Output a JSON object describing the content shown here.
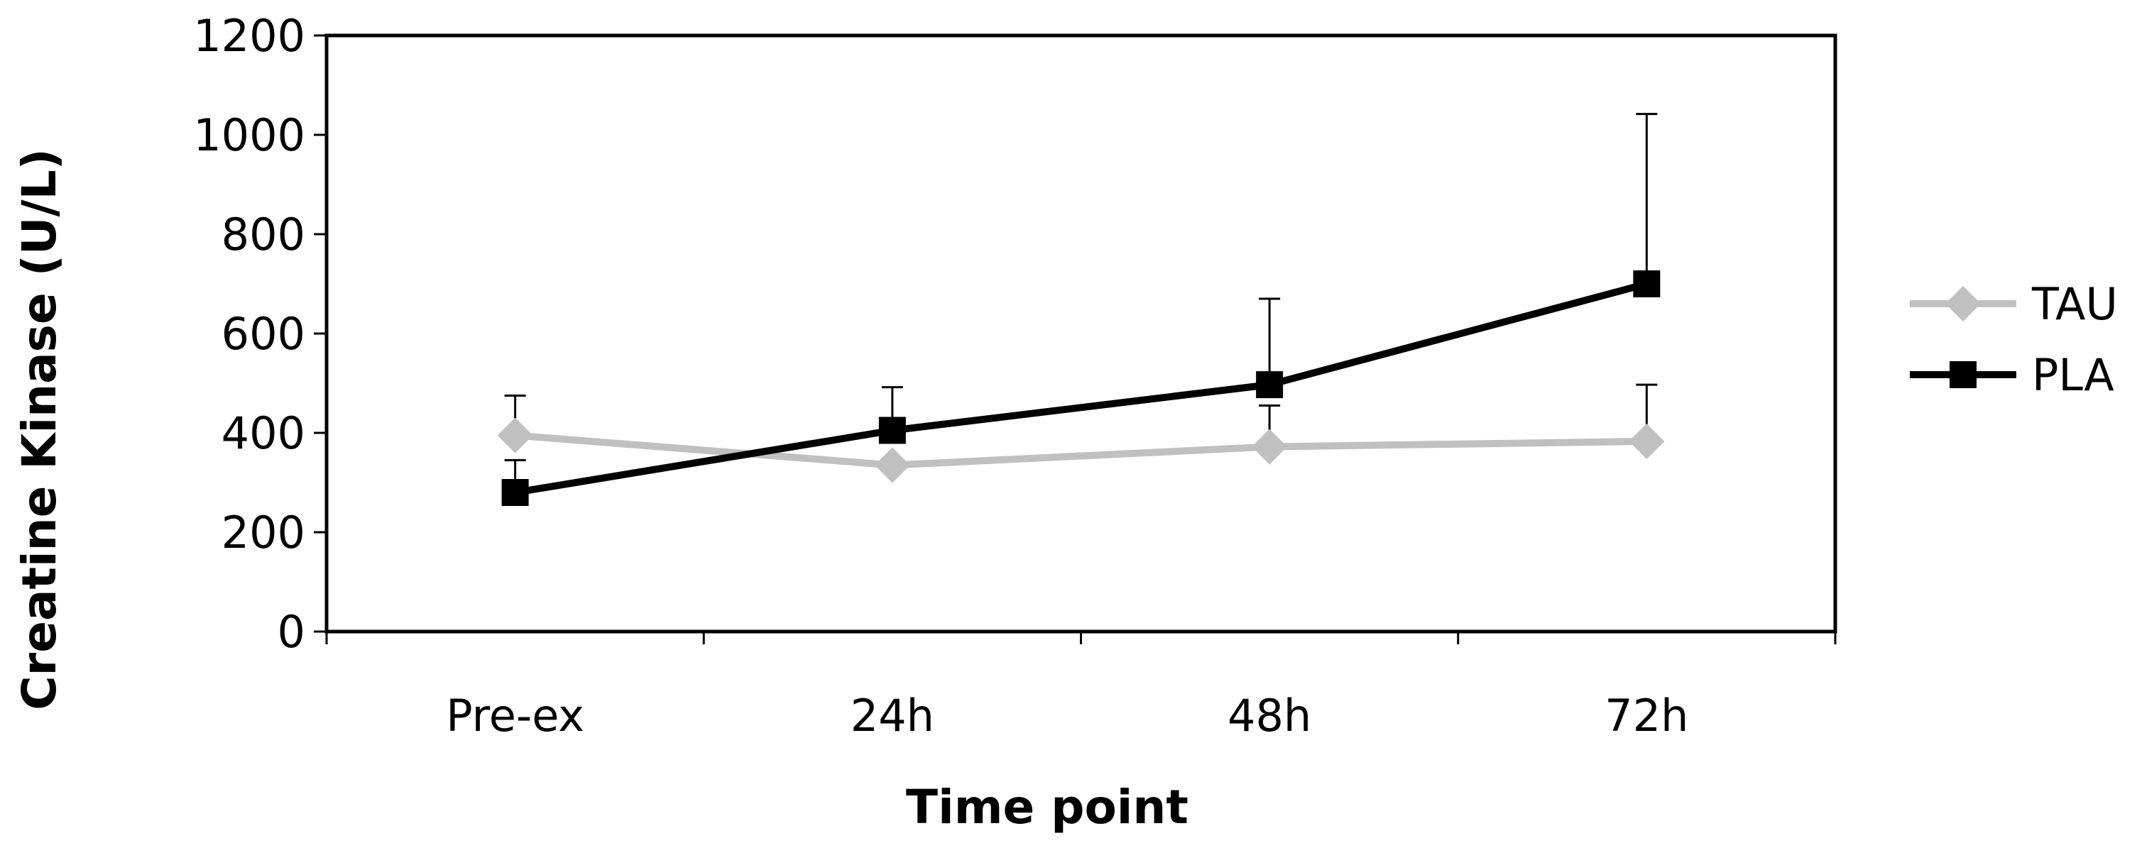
{
  "chart_data": {
    "type": "line",
    "title": "",
    "xlabel": "Time point",
    "ylabel": "Creatine Kinase (U/L)",
    "categories": [
      "Pre-ex",
      "24h",
      "48h",
      "72h"
    ],
    "ylim": [
      0,
      1200
    ],
    "yticks": [
      0,
      200,
      400,
      600,
      800,
      1000,
      1200
    ],
    "grid": false,
    "legend_position": "right",
    "series": [
      {
        "name": "TAU",
        "values": [
          395,
          335,
          372,
          383
        ],
        "error_upper": [
          475,
          null,
          455,
          497
        ],
        "color": "#c0c0c0",
        "marker": "diamond"
      },
      {
        "name": "PLA",
        "values": [
          280,
          405,
          497,
          700
        ],
        "error_upper": [
          345,
          492,
          670,
          1042
        ],
        "color": "#000000",
        "marker": "square"
      }
    ]
  }
}
